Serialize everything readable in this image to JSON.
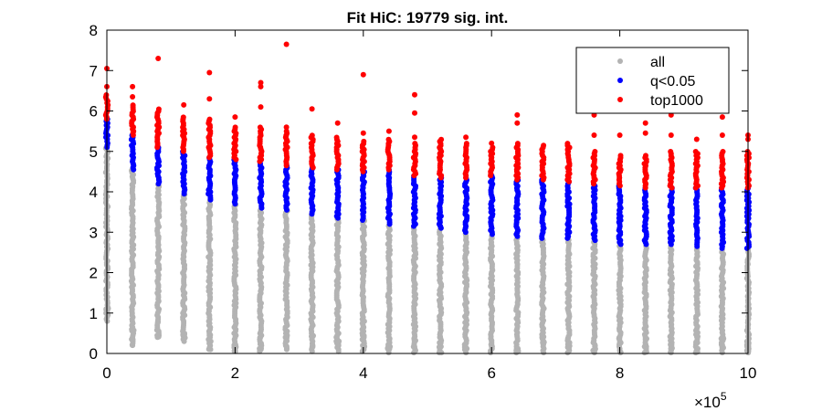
{
  "chart_data": {
    "type": "scatter",
    "title": "Fit HiC: 19779 sig. int.",
    "xlabel": "",
    "ylabel": "",
    "xlim": [
      0,
      1000000
    ],
    "ylim": [
      0,
      8
    ],
    "x_ticks": [
      0,
      200000,
      400000,
      600000,
      800000,
      1000000
    ],
    "x_tick_labels": [
      "0",
      "2",
      "4",
      "6",
      "8",
      "10"
    ],
    "x_exponent_label": "×10",
    "x_exponent_power": "5",
    "y_ticks": [
      0,
      1,
      2,
      3,
      4,
      5,
      6,
      7,
      8
    ],
    "y_tick_labels": [
      "0",
      "1",
      "2",
      "3",
      "4",
      "5",
      "6",
      "7",
      "8"
    ],
    "grid": false,
    "legend_position": "top-right",
    "series": [
      {
        "name": "all",
        "color": "#b3b3b3"
      },
      {
        "name": "q<0.05",
        "color": "#0000ff"
      },
      {
        "name": "top1000",
        "color": "#ff0000"
      }
    ],
    "columns": [
      {
        "x": 0,
        "all": [
          0.8,
          5.1
        ],
        "q": [
          5.1,
          5.8
        ],
        "top": [
          5.8,
          6.4
        ],
        "top_out": [
          6.6,
          7.05
        ]
      },
      {
        "x": 40000,
        "all": [
          0.2,
          4.55
        ],
        "q": [
          4.55,
          5.4
        ],
        "top": [
          5.4,
          6.15
        ],
        "top_out": [
          6.35,
          6.6
        ]
      },
      {
        "x": 80000,
        "all": [
          0.4,
          4.2
        ],
        "q": [
          4.2,
          5.1
        ],
        "top": [
          5.1,
          6.05
        ],
        "top_out": [
          7.3
        ]
      },
      {
        "x": 120000,
        "all": [
          0.3,
          3.95
        ],
        "q": [
          3.95,
          5.0
        ],
        "top": [
          5.0,
          5.85
        ],
        "top_out": [
          6.15
        ]
      },
      {
        "x": 160000,
        "all": [
          0.1,
          3.8
        ],
        "q": [
          3.8,
          4.85
        ],
        "top": [
          4.85,
          5.8
        ],
        "top_out": [
          6.3,
          6.95
        ]
      },
      {
        "x": 200000,
        "all": [
          0.05,
          3.7
        ],
        "q": [
          3.7,
          4.8
        ],
        "top": [
          4.8,
          5.6
        ],
        "top_out": [
          5.85
        ]
      },
      {
        "x": 240000,
        "all": [
          0.05,
          3.6
        ],
        "q": [
          3.6,
          4.75
        ],
        "top": [
          4.75,
          5.6
        ],
        "top_out": [
          6.1,
          6.6,
          6.7
        ]
      },
      {
        "x": 280000,
        "all": [
          0.1,
          3.55
        ],
        "q": [
          3.55,
          4.65
        ],
        "top": [
          4.65,
          5.5
        ],
        "top_out": [
          5.6,
          7.65
        ]
      },
      {
        "x": 320000,
        "all": [
          0.05,
          3.45
        ],
        "q": [
          3.45,
          4.6
        ],
        "top": [
          4.6,
          5.4
        ],
        "top_out": [
          6.05
        ]
      },
      {
        "x": 360000,
        "all": [
          0.05,
          3.35
        ],
        "q": [
          3.35,
          4.55
        ],
        "top": [
          4.55,
          5.35
        ],
        "top_out": [
          5.7
        ]
      },
      {
        "x": 400000,
        "all": [
          0.05,
          3.3
        ],
        "q": [
          3.3,
          4.5
        ],
        "top": [
          4.5,
          5.25
        ],
        "top_out": [
          5.45,
          6.9
        ]
      },
      {
        "x": 440000,
        "all": [
          0.02,
          3.2
        ],
        "q": [
          3.2,
          4.55
        ],
        "top": [
          4.55,
          5.3
        ],
        "top_out": [
          5.5
        ]
      },
      {
        "x": 480000,
        "all": [
          0.02,
          3.15
        ],
        "q": [
          3.15,
          4.4
        ],
        "top": [
          4.4,
          5.2
        ],
        "top_out": [
          5.35,
          5.95,
          6.4
        ]
      },
      {
        "x": 520000,
        "all": [
          0.02,
          3.1
        ],
        "q": [
          3.1,
          4.35
        ],
        "top": [
          4.35,
          5.3
        ],
        "top_out": []
      },
      {
        "x": 560000,
        "all": [
          0.02,
          3.0
        ],
        "q": [
          3.0,
          4.35
        ],
        "top": [
          4.35,
          5.2
        ],
        "top_out": [
          5.35
        ]
      },
      {
        "x": 600000,
        "all": [
          0.02,
          2.95
        ],
        "q": [
          2.95,
          4.4
        ],
        "top": [
          4.4,
          5.1
        ],
        "top_out": [
          5.2
        ]
      },
      {
        "x": 640000,
        "all": [
          0.02,
          2.9
        ],
        "q": [
          2.9,
          4.3
        ],
        "top": [
          4.3,
          5.2
        ],
        "top_out": [
          5.7,
          5.9
        ]
      },
      {
        "x": 680000,
        "all": [
          0.02,
          2.85
        ],
        "q": [
          2.85,
          4.3
        ],
        "top": [
          4.3,
          5.15
        ],
        "top_out": []
      },
      {
        "x": 720000,
        "all": [
          0.02,
          2.85
        ],
        "q": [
          2.85,
          4.25
        ],
        "top": [
          4.25,
          5.2
        ],
        "top_out": []
      },
      {
        "x": 760000,
        "all": [
          0.02,
          2.8
        ],
        "q": [
          2.8,
          4.2
        ],
        "top": [
          4.2,
          5.0
        ],
        "top_out": [
          5.4,
          5.9
        ]
      },
      {
        "x": 800000,
        "all": [
          0.02,
          2.7
        ],
        "q": [
          2.7,
          4.15
        ],
        "top": [
          4.15,
          4.9
        ],
        "top_out": [
          5.4
        ]
      },
      {
        "x": 840000,
        "all": [
          0.02,
          2.7
        ],
        "q": [
          2.7,
          4.1
        ],
        "top": [
          4.1,
          4.9
        ],
        "top_out": [
          5.45,
          5.7
        ]
      },
      {
        "x": 880000,
        "all": [
          0.02,
          2.7
        ],
        "q": [
          2.7,
          4.1
        ],
        "top": [
          4.1,
          5.0
        ],
        "top_out": [
          5.4,
          5.9
        ]
      },
      {
        "x": 920000,
        "all": [
          0.02,
          2.65
        ],
        "q": [
          2.65,
          4.1
        ],
        "top": [
          4.1,
          5.0
        ],
        "top_out": [
          5.3
        ]
      },
      {
        "x": 960000,
        "all": [
          0.02,
          2.6
        ],
        "q": [
          2.6,
          4.1
        ],
        "top": [
          4.1,
          5.0
        ],
        "top_out": [
          5.4,
          5.85
        ]
      },
      {
        "x": 1000000,
        "all": [
          0.02,
          2.6
        ],
        "q": [
          2.6,
          4.1
        ],
        "top": [
          4.1,
          5.0
        ],
        "top_out": [
          5.3,
          5.4
        ]
      }
    ]
  }
}
